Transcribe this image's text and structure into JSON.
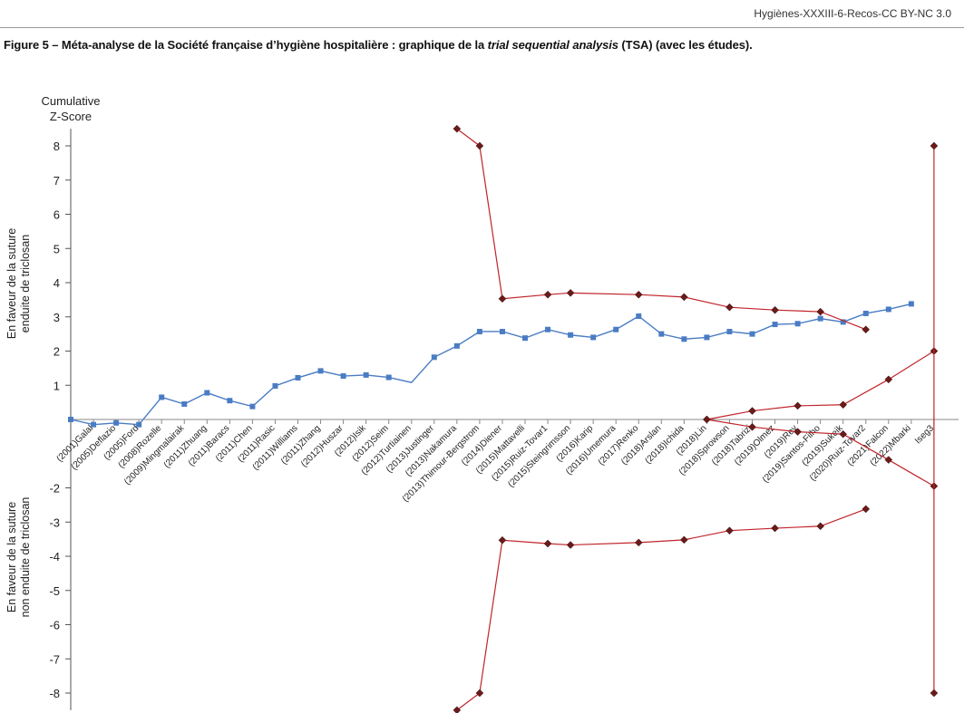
{
  "header": {
    "source": "Hygiènes-XXXIII-6-Recos-CC BY-NC 3.0",
    "caption_prefix": "Figure 5 – Méta-analyse de la Société française d’hygiène hospitalière : graphique de la ",
    "caption_italic": "trial sequential analysis",
    "caption_suffix": " (TSA) (avec les études)."
  },
  "chart_data": {
    "type": "line",
    "ylabel_line1": "Cumulative",
    "ylabel_line2": "Z-Score",
    "side_label_top_line1": "En faveur de la suture",
    "side_label_top_line2": "enduite de triclosan",
    "side_label_bottom_line1": "En faveur de la suture",
    "side_label_bottom_line2": "non enduite de triclosan",
    "ylim": [
      -8.5,
      8.5
    ],
    "yticks": [
      "-8",
      "-7",
      "-6",
      "-5",
      "-4",
      "-3",
      "-2",
      "1",
      "2",
      "3",
      "4",
      "5",
      "6",
      "7",
      "8"
    ],
    "ytick_values": [
      -8,
      -7,
      -6,
      -5,
      -4,
      -3,
      -2,
      1,
      2,
      3,
      4,
      5,
      6,
      7,
      8
    ],
    "grid": false,
    "categories": [
      "(2001)Galal",
      "(2005)Deflazio",
      "(2005)Ford",
      "(2008)Rozelle",
      "(2009)Mingmalairak",
      "(2011)Zhuang",
      "(2011)Baracs",
      "(2011)Chen",
      "(2011)Rasic",
      "(2011)Williams",
      "(2011)Zhang",
      "(2012)Huszar",
      "(2012)Isik",
      "(2012)Seim",
      "(2012)Turtiainen",
      "(2013)Justinger",
      "(2013)Nakamura",
      "(2013)Thimour-Bergstrom",
      "(2014)Diener",
      "(2015)Mattavelli",
      "(2015)Ruiz-Tovar1",
      "(2015)Steingrimsson",
      "(2016)Karip",
      "(2016)Umemura",
      "(2017)Renko",
      "(2018)Arslan",
      "(2018)Ichida",
      "(2018)Lin",
      "(2018)Sprowson",
      "(2018)Tabrizi",
      "(2019)Olmez",
      "(2019)Rey",
      "(2019)Santos-Filho",
      "(2019)Sukeik",
      "(2020)Ruiz-Tovar2",
      "(2021)Falcon",
      "(2022)Mbarki",
      "Iseg3"
    ],
    "series": [
      {
        "name": "",
        "color": "#4a7cc4",
        "marker": "square",
        "x": [
          0,
          1,
          2,
          3,
          4,
          5,
          6,
          7,
          8,
          9,
          10,
          11,
          12,
          13,
          14,
          15,
          16,
          17,
          18,
          19,
          20,
          21,
          22,
          23,
          24,
          25,
          26,
          27,
          28,
          29,
          30,
          31,
          32,
          33,
          34,
          35,
          36,
          37
        ],
        "y": [
          0.0,
          -0.15,
          -0.1,
          -0.15,
          0.65,
          0.45,
          0.78,
          0.55,
          0.38,
          0.98,
          1.22,
          1.42,
          1.27,
          1.3,
          1.23,
          1.08,
          1.82,
          2.15,
          2.57,
          2.57,
          2.38,
          2.63,
          2.47,
          2.4,
          2.63,
          3.02,
          2.5,
          2.35,
          2.4,
          2.57,
          2.5,
          2.78,
          2.8,
          2.95,
          2.85,
          3.1,
          3.22,
          3.38
        ],
        "markers": [
          0,
          1,
          2,
          3,
          4,
          5,
          6,
          7,
          8,
          9,
          10,
          11,
          12,
          13,
          14,
          16,
          17,
          18,
          19,
          20,
          21,
          22,
          23,
          24,
          25,
          26,
          27,
          28,
          29,
          30,
          31,
          32,
          33,
          34,
          35,
          36,
          37
        ]
      },
      {
        "name": "",
        "color": "#c0242b",
        "marker": "diamond",
        "x": [
          17,
          18,
          19,
          21,
          22,
          25,
          27,
          29,
          31,
          33,
          35
        ],
        "y": [
          8.5,
          8.0,
          3.53,
          3.65,
          3.7,
          3.65,
          3.58,
          3.28,
          3.2,
          3.15,
          2.63
        ]
      },
      {
        "name": "",
        "color": "#c0242b",
        "marker": "diamond",
        "x": [
          17,
          18,
          19,
          21,
          22,
          25,
          27,
          29,
          31,
          33,
          35
        ],
        "y": [
          -8.5,
          -8.0,
          -3.53,
          -3.63,
          -3.67,
          -3.6,
          -3.52,
          -3.25,
          -3.18,
          -3.12,
          -2.62
        ]
      },
      {
        "name": "",
        "color": "#c0242b",
        "marker": "diamond",
        "x": [
          28,
          30,
          32,
          34,
          36,
          38
        ],
        "y": [
          0.0,
          0.25,
          0.4,
          0.43,
          1.17,
          2.0
        ]
      },
      {
        "name": "",
        "color": "#c0242b",
        "marker": "diamond",
        "x": [
          28,
          30,
          32,
          34,
          36,
          38
        ],
        "y": [
          0.0,
          -0.22,
          -0.36,
          -0.43,
          -1.18,
          -1.95
        ]
      },
      {
        "name": "",
        "color": "#c0242b",
        "marker": "diamond",
        "x": [
          38,
          38
        ],
        "y": [
          8.0,
          -8.0
        ]
      }
    ]
  }
}
